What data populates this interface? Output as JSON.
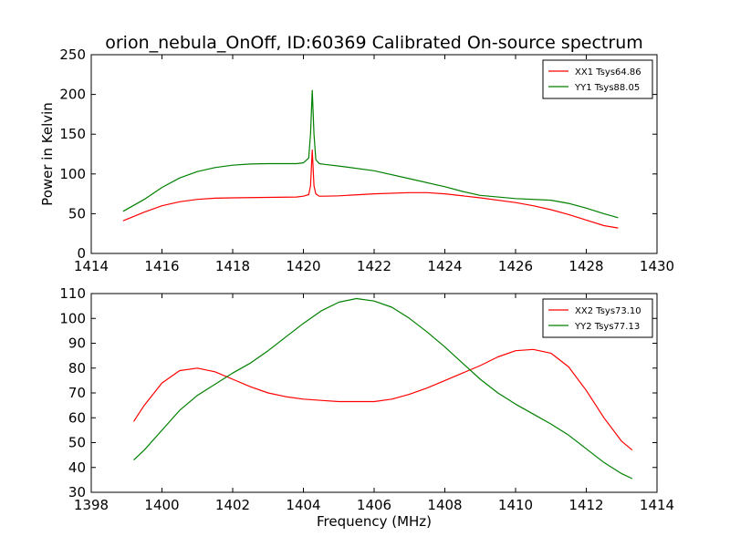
{
  "figure": {
    "title": "orion_nebula_OnOff, ID:60369 Calibrated On-source spectrum"
  },
  "chart_data": [
    {
      "type": "line",
      "title": "orion_nebula_OnOff, ID:60369 Calibrated On-source spectrum",
      "xlabel": "",
      "ylabel": "Power in Kelvin",
      "xlim": [
        1414,
        1430
      ],
      "ylim": [
        0,
        250
      ],
      "xticks": [
        "1414",
        "1416",
        "1418",
        "1420",
        "1422",
        "1424",
        "1426",
        "1428",
        "1430"
      ],
      "yticks": [
        "0",
        "50",
        "100",
        "150",
        "200",
        "250"
      ],
      "grid": false,
      "legend": "top-right",
      "series": [
        {
          "name": "XX1 Tsys64.86",
          "color": "#ff0000",
          "x": [
            1414.9,
            1415.5,
            1416,
            1416.5,
            1417,
            1417.5,
            1418,
            1419,
            1419.8,
            1420.0,
            1420.15,
            1420.2,
            1420.25,
            1420.3,
            1420.35,
            1420.45,
            1420.6,
            1421,
            1422,
            1423,
            1423.5,
            1424,
            1425,
            1426,
            1426.5,
            1427,
            1427.5,
            1428,
            1428.5,
            1428.9
          ],
          "y": [
            41,
            52,
            60,
            65,
            68,
            69.5,
            70,
            70.5,
            71,
            72,
            74,
            85,
            130,
            85,
            75,
            72,
            72,
            72.5,
            75,
            76.5,
            76.5,
            75,
            70,
            64,
            60,
            55,
            49,
            42,
            35,
            32
          ]
        },
        {
          "name": "YY1 Tsys88.05",
          "color": "#008000",
          "x": [
            1414.9,
            1415.5,
            1416,
            1416.5,
            1417,
            1417.5,
            1418,
            1418.5,
            1419,
            1419.8,
            1420.0,
            1420.15,
            1420.2,
            1420.25,
            1420.3,
            1420.35,
            1420.45,
            1420.6,
            1421,
            1422,
            1423,
            1424,
            1424.5,
            1425,
            1426,
            1427,
            1427.5,
            1428,
            1428.5,
            1428.9
          ],
          "y": [
            53,
            68,
            83,
            95,
            103,
            108,
            111,
            112.5,
            113,
            113,
            114,
            120,
            150,
            205,
            150,
            118,
            113,
            112,
            110,
            104,
            94,
            84,
            78,
            73,
            69,
            67,
            63,
            57,
            50,
            45
          ]
        }
      ]
    },
    {
      "type": "line",
      "title": "",
      "xlabel": "Frequency (MHz)",
      "ylabel": "",
      "xlim": [
        1398,
        1414
      ],
      "ylim": [
        30,
        110
      ],
      "xticks": [
        "1398",
        "1400",
        "1402",
        "1404",
        "1406",
        "1408",
        "1410",
        "1412",
        "1414"
      ],
      "yticks": [
        "30",
        "40",
        "50",
        "60",
        "70",
        "80",
        "90",
        "100",
        "110"
      ],
      "grid": false,
      "legend": "top-right",
      "series": [
        {
          "name": "XX2 Tsys73.10",
          "color": "#ff0000",
          "x": [
            1399.2,
            1399.5,
            1400,
            1400.5,
            1401,
            1401.5,
            1402,
            1402.5,
            1403,
            1403.5,
            1404,
            1404.5,
            1405,
            1405.5,
            1406,
            1406.5,
            1407,
            1407.5,
            1408,
            1408.5,
            1409,
            1409.5,
            1410,
            1410.5,
            1411,
            1411.5,
            1412,
            1412.5,
            1413,
            1413.3
          ],
          "y": [
            58.5,
            65,
            74,
            79,
            80,
            78.5,
            75.5,
            72.5,
            70,
            68.5,
            67.5,
            67,
            66.5,
            66.5,
            66.5,
            67.5,
            69.5,
            72,
            75,
            78,
            81,
            84.5,
            87,
            87.5,
            86,
            80.5,
            71,
            60,
            50.5,
            47
          ]
        },
        {
          "name": "YY2 Tsys77.13",
          "color": "#008000",
          "x": [
            1399.2,
            1399.5,
            1400,
            1400.5,
            1401,
            1401.5,
            1402,
            1402.5,
            1403,
            1403.5,
            1404,
            1404.5,
            1405,
            1405.5,
            1406,
            1406.5,
            1407,
            1407.5,
            1408,
            1408.5,
            1409,
            1409.5,
            1410,
            1410.5,
            1411,
            1411.5,
            1412,
            1412.5,
            1413,
            1413.3
          ],
          "y": [
            43,
            47,
            55,
            63,
            69,
            73.5,
            78,
            82,
            87,
            92.5,
            98,
            103,
            106.5,
            108,
            107,
            104.5,
            100,
            94.5,
            88.5,
            82,
            75.5,
            70,
            65.5,
            61.5,
            57.5,
            53,
            47.5,
            42,
            37.5,
            35.5
          ]
        }
      ]
    }
  ]
}
